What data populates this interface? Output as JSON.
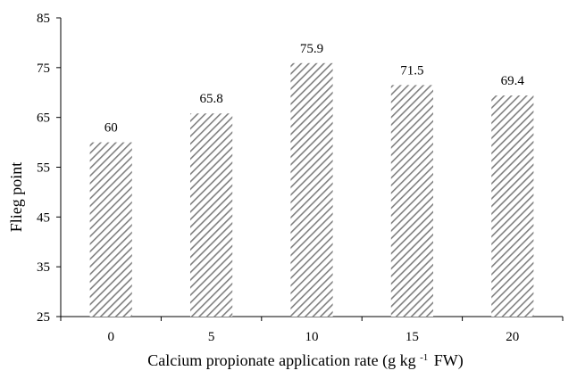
{
  "chart_data": {
    "type": "bar",
    "title": "",
    "xlabel_parts": [
      "Calcium propionate application rate (g kg ",
      "-1",
      "FW)"
    ],
    "ylabel": "Flieg point",
    "categories": [
      "0",
      "5",
      "10",
      "15",
      "20"
    ],
    "values": [
      60,
      65.8,
      75.9,
      71.5,
      69.4
    ],
    "data_labels": [
      "60",
      "65.8",
      "75.9",
      "71.5",
      "69.4"
    ],
    "ylim": [
      25,
      85
    ],
    "yticks": [
      25,
      35,
      45,
      55,
      65,
      75,
      85
    ],
    "ytick_labels": [
      "25",
      "35",
      "45",
      "55",
      "65",
      "75",
      "85"
    ],
    "grid": false,
    "legend": "none",
    "bar_fill": "diagonal-hatch",
    "colors": {
      "hatch": "#808080",
      "bar_background": "#ffffff",
      "axis": "#000000"
    }
  }
}
